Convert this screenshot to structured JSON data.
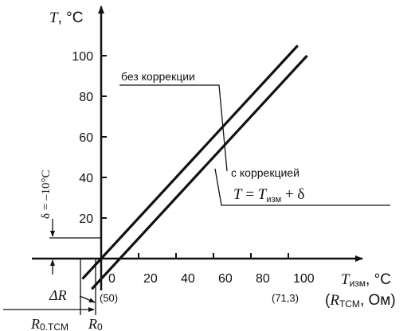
{
  "chart_data": {
    "type": "line",
    "y_axis": {
      "symbol": "T",
      "unit": ", °C"
    },
    "x_axis": {
      "symbol": "T",
      "subscript": "изм",
      "unit": ", °C",
      "alt_open": "(",
      "alt_symbol": "R",
      "alt_subscript": "TCM",
      "alt_unit": ", Ом)"
    },
    "x_ticks": [
      "0",
      "20",
      "40",
      "60",
      "80",
      "100"
    ],
    "y_ticks": [
      "20",
      "40",
      "60",
      "80",
      "100"
    ],
    "xlim": [
      -32,
      108
    ],
    "ylim": [
      -10,
      118
    ],
    "series": [
      {
        "name": "без коррекции",
        "x": [
          -10,
          105
        ],
        "y": [
          -10,
          105
        ]
      },
      {
        "name": "с коррекцией",
        "x": [
          -5,
          110
        ],
        "y": [
          -15,
          100
        ]
      }
    ],
    "annotations": {
      "with_correction_formula": {
        "lhs": "T",
        "eq": " = ",
        "rhs": "T",
        "rhs_sub": "изм",
        "plus": " + δ"
      },
      "delta_label": "δ = –10°C",
      "delta_r": "ΔR",
      "r50": "(50)",
      "r713": "(71,3)",
      "r0tcm": "R",
      "r0tcm_sub": "0.TCM",
      "r0": "R",
      "r0_sub": "0"
    }
  }
}
